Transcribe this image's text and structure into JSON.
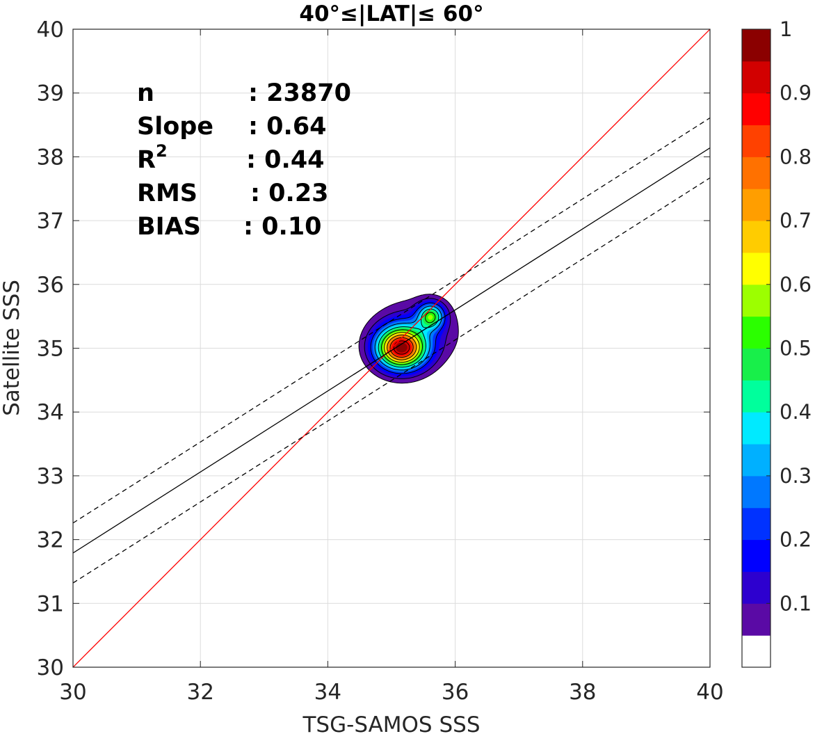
{
  "chart_data": {
    "type": "contour",
    "title": "40°≤|LAT|≤ 60°",
    "xlabel": "TSG-SAMOS SSS",
    "ylabel": "Satellite SSS",
    "xlim": [
      30,
      40
    ],
    "ylim": [
      30,
      40
    ],
    "xticks": [
      "30",
      "32",
      "34",
      "36",
      "38",
      "40"
    ],
    "yticks": [
      "30",
      "31",
      "32",
      "33",
      "34",
      "35",
      "36",
      "37",
      "38",
      "39",
      "40"
    ],
    "grid": true,
    "stats": [
      {
        "label": "n",
        "value": ": 23870"
      },
      {
        "label": "Slope",
        "value": ": 0.64"
      },
      {
        "label": "R",
        "sup": "2",
        "value": ": 0.44"
      },
      {
        "label": "RMS",
        "value": ": 0.23"
      },
      {
        "label": "BIAS",
        "value": ": 0.10"
      }
    ],
    "lines": [
      {
        "kind": "one-to-one",
        "color": "#ff0000",
        "style": "solid",
        "x": [
          30,
          40
        ],
        "y": [
          30,
          40
        ]
      },
      {
        "kind": "regression",
        "color": "#000000",
        "style": "solid",
        "x": [
          30,
          40
        ],
        "y": [
          31.79,
          38.14
        ]
      },
      {
        "kind": "upper-bound",
        "color": "#000000",
        "style": "dashed",
        "x": [
          30,
          40
        ],
        "y": [
          32.26,
          38.61
        ]
      },
      {
        "kind": "lower-bound",
        "color": "#000000",
        "style": "dashed",
        "x": [
          30,
          40
        ],
        "y": [
          31.32,
          37.67
        ]
      }
    ],
    "density_peaks": [
      {
        "x": 35.15,
        "y": 35.0,
        "sx": 0.26,
        "sy": 0.22,
        "a": 1.0
      },
      {
        "x": 35.62,
        "y": 35.5,
        "sx": 0.14,
        "sy": 0.14,
        "a": 0.5
      },
      {
        "x": 35.4,
        "y": 35.25,
        "sx": 0.45,
        "sy": 0.35,
        "a": 0.15
      }
    ],
    "contour_levels": [
      0.05,
      0.1,
      0.15,
      0.2,
      0.25,
      0.3,
      0.35,
      0.4,
      0.45,
      0.5,
      0.55,
      0.6,
      0.65,
      0.7,
      0.75,
      0.8,
      0.85,
      0.9,
      0.95
    ],
    "colorbar": {
      "ticks": [
        "0.1",
        "0.2",
        "0.3",
        "0.4",
        "0.5",
        "0.6",
        "0.7",
        "0.8",
        "0.9",
        "1"
      ],
      "tick_values": [
        0.1,
        0.2,
        0.3,
        0.4,
        0.5,
        0.6,
        0.7,
        0.8,
        0.9,
        1.0
      ],
      "colors": [
        "#ffffff",
        "#5a0aa5",
        "#2d00cf",
        "#0000ff",
        "#0032ff",
        "#0078ff",
        "#00b0ff",
        "#00eaff",
        "#00ff9c",
        "#18ef4a",
        "#2bff00",
        "#9cff00",
        "#ffff00",
        "#ffcc00",
        "#ff9e00",
        "#ff7100",
        "#ff4100",
        "#ff0000",
        "#d20000",
        "#8b0000"
      ]
    }
  }
}
